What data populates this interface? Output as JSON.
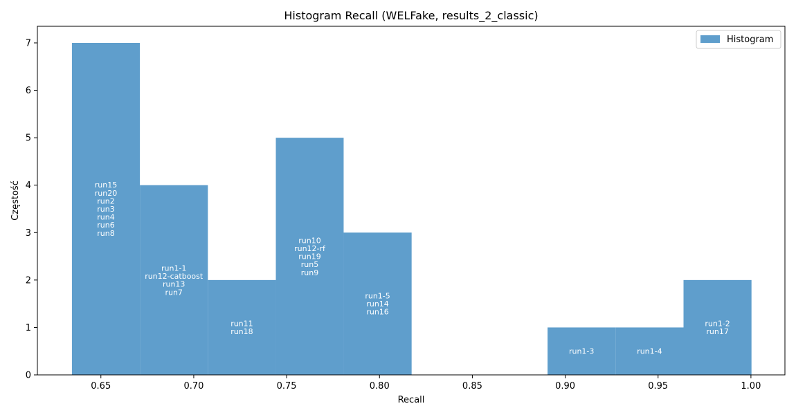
{
  "chart_data": {
    "type": "bar",
    "title": "Histogram Recall (WELFake, results_2_classic)",
    "xlabel": "Recall",
    "ylabel": "Częstość",
    "xlim": [
      0.6158,
      1.0183
    ],
    "ylim": [
      0,
      7.35
    ],
    "x_ticks": [
      0.65,
      0.7,
      0.75,
      0.8,
      0.85,
      0.9,
      0.95,
      1.0
    ],
    "y_ticks": [
      0,
      1,
      2,
      3,
      4,
      5,
      6,
      7
    ],
    "bar_color": "#5f9ecc",
    "legend": {
      "position": "top-right",
      "entries": [
        "Histogram"
      ]
    },
    "bins": [
      {
        "x0": 0.6344,
        "x1": 0.671,
        "count": 7,
        "labels": [
          "run15",
          "run20",
          "run2",
          "run3",
          "run4",
          "run6",
          "run8"
        ]
      },
      {
        "x0": 0.671,
        "x1": 0.7076,
        "count": 4,
        "labels": [
          "run1-1",
          "run12-catboost",
          "run13",
          "run7"
        ]
      },
      {
        "x0": 0.7076,
        "x1": 0.7442,
        "count": 2,
        "labels": [
          "run11",
          "run18"
        ]
      },
      {
        "x0": 0.7442,
        "x1": 0.7807,
        "count": 5,
        "labels": [
          "run10",
          "run12-rf",
          "run19",
          "run5",
          "run9"
        ]
      },
      {
        "x0": 0.7807,
        "x1": 0.8173,
        "count": 3,
        "labels": [
          "run1-5",
          "run14",
          "run16"
        ]
      },
      {
        "x0": 0.8173,
        "x1": 0.8539,
        "count": 0,
        "labels": []
      },
      {
        "x0": 0.8539,
        "x1": 0.8905,
        "count": 0,
        "labels": []
      },
      {
        "x0": 0.8905,
        "x1": 0.9271,
        "count": 1,
        "labels": [
          "run1-3"
        ]
      },
      {
        "x0": 0.9271,
        "x1": 0.9637,
        "count": 1,
        "labels": [
          "run1-4"
        ]
      },
      {
        "x0": 0.9637,
        "x1": 1.0003,
        "count": 2,
        "labels": [
          "run1-2",
          "run17"
        ]
      }
    ]
  }
}
